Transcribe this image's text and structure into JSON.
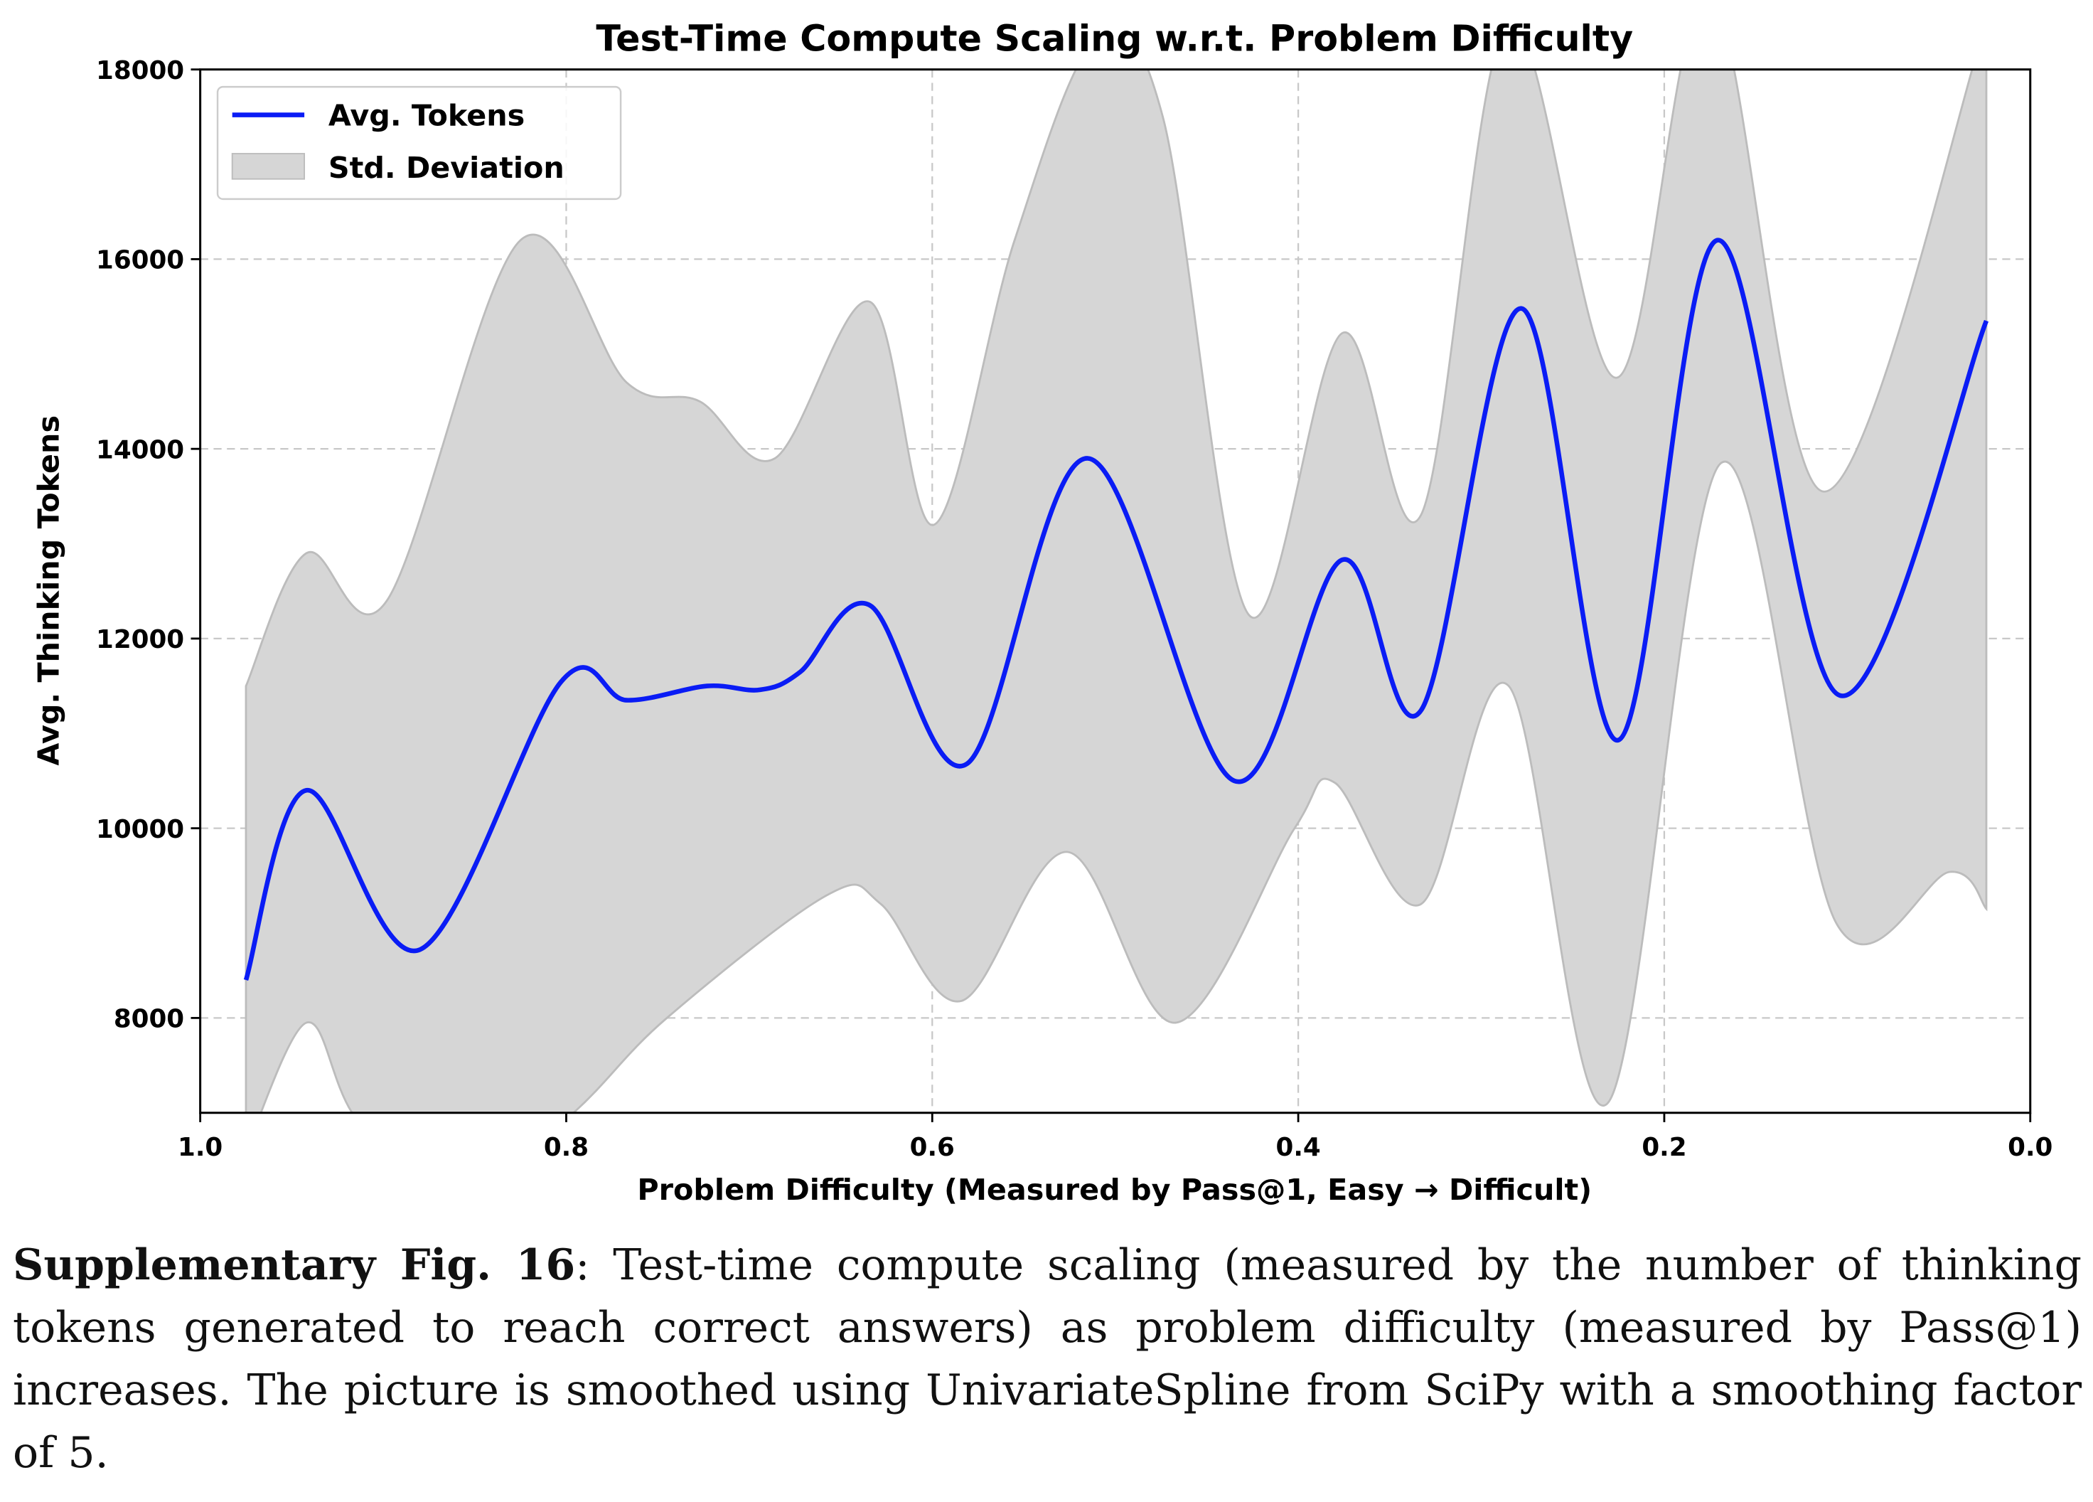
{
  "chart_data": {
    "type": "line",
    "title": "Test-Time Compute Scaling w.r.t. Problem Difficulty",
    "xlabel": "Problem Difficulty (Measured by Pass@1, Easy → Difficult)",
    "ylabel": "Avg. Thinking Tokens",
    "xlim": [
      1.0,
      0.0
    ],
    "ylim": [
      7000,
      18000
    ],
    "xticks": [
      "1.0",
      "0.8",
      "0.6",
      "0.4",
      "0.2",
      "0.0"
    ],
    "xtick_values": [
      1.0,
      0.8,
      0.6,
      0.4,
      0.2,
      0.0
    ],
    "yticks": [
      "8000",
      "10000",
      "12000",
      "14000",
      "16000",
      "18000"
    ],
    "ytick_values": [
      8000,
      10000,
      12000,
      14000,
      16000,
      18000
    ],
    "grid": true,
    "legend_position": "top-left",
    "series": [
      {
        "name": "Avg. Tokens",
        "color": "#0a1cf5",
        "x": [
          0.975,
          0.942,
          0.88,
          0.803,
          0.767,
          0.723,
          0.694,
          0.672,
          0.634,
          0.581,
          0.515,
          0.435,
          0.376,
          0.333,
          0.278,
          0.225,
          0.171,
          0.104,
          0.024
        ],
        "y": [
          8400,
          10400,
          8720,
          11540,
          11350,
          11500,
          11460,
          11650,
          12350,
          10680,
          13900,
          10500,
          12830,
          11240,
          15480,
          10930,
          16200,
          11400,
          15350
        ]
      }
    ],
    "band": {
      "name": "Std. Deviation",
      "color": "#d6d6d6",
      "upper_x": [
        0.975,
        0.942,
        0.898,
        0.825,
        0.767,
        0.727,
        0.686,
        0.634,
        0.599,
        0.555,
        0.511,
        0.474,
        0.427,
        0.376,
        0.333,
        0.285,
        0.226,
        0.175,
        0.113,
        0.024
      ],
      "upper_y": [
        11500,
        12900,
        12400,
        16200,
        14700,
        14500,
        13900,
        15550,
        13200,
        16200,
        18300,
        17500,
        12250,
        15220,
        13300,
        18500,
        14750,
        18800,
        13550,
        18500
      ],
      "lower_x": [
        0.975,
        0.942,
        0.917,
        0.87,
        0.796,
        0.745,
        0.657,
        0.628,
        0.584,
        0.526,
        0.467,
        0.402,
        0.38,
        0.333,
        0.285,
        0.231,
        0.169,
        0.106,
        0.044,
        0.024
      ],
      "lower_y": [
        6600,
        7950,
        7000,
        5800,
        7000,
        8000,
        9300,
        9200,
        8180,
        9750,
        7950,
        10000,
        10480,
        9200,
        11500,
        7100,
        13850,
        9000,
        9540,
        9150
      ]
    }
  },
  "caption": {
    "label": "Supplementary Fig. 16",
    "text": ": Test-time compute scaling (measured by the number of thinking tokens generated to reach correct answers) as problem difficulty (measured by Pass@1) increases. The picture is smoothed using UnivariateSpline from SciPy with a smoothing factor of 5."
  }
}
